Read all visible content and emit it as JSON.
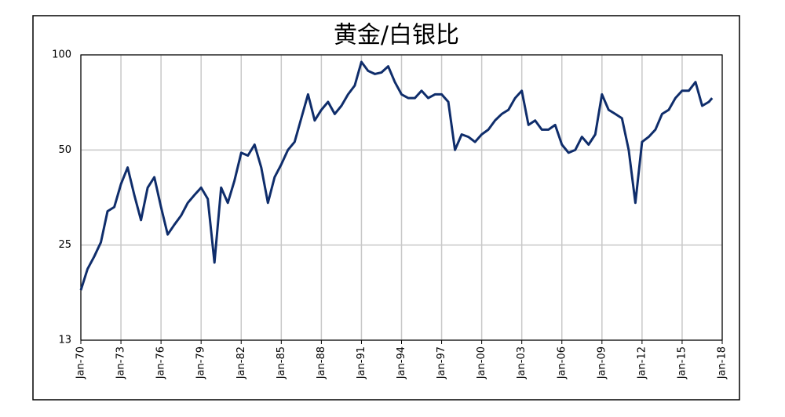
{
  "chart_data": {
    "type": "line",
    "title": "黄金/白银比",
    "x": [
      "Jan-70",
      "Jul-70",
      "Jan-71",
      "Jul-71",
      "Jan-72",
      "Jul-72",
      "Jan-73",
      "Jul-73",
      "Jan-74",
      "Jul-74",
      "Jan-75",
      "Jul-75",
      "Jan-76",
      "Jul-76",
      "Jan-77",
      "Jul-77",
      "Jan-78",
      "Jul-78",
      "Jan-79",
      "Jul-79",
      "Jan-80",
      "Jul-80",
      "Jan-81",
      "Jul-81",
      "Jan-82",
      "Jul-82",
      "Jan-83",
      "Jul-83",
      "Jan-84",
      "Jul-84",
      "Jan-85",
      "Jul-85",
      "Jan-86",
      "Jul-86",
      "Jan-87",
      "Jul-87",
      "Jan-88",
      "Jul-88",
      "Jan-89",
      "Jul-89",
      "Jan-90",
      "Jul-90",
      "Jan-91",
      "Jul-91",
      "Jan-92",
      "Jul-92",
      "Jan-93",
      "Jul-93",
      "Jan-94",
      "Jul-94",
      "Jan-95",
      "Jul-95",
      "Jan-96",
      "Jul-96",
      "Jan-97",
      "Jul-97",
      "Jan-98",
      "Jul-98",
      "Jan-99",
      "Jul-99",
      "Jan-00",
      "Jul-00",
      "Jan-01",
      "Jul-01",
      "Jan-02",
      "Jul-02",
      "Jan-03",
      "Jul-03",
      "Jan-04",
      "Jul-04",
      "Jan-05",
      "Jul-05",
      "Jan-06",
      "Jul-06",
      "Jan-07",
      "Jul-07",
      "Jan-08",
      "Jul-08",
      "Jan-09",
      "Jul-09",
      "Jan-10",
      "Jul-10",
      "Jan-11",
      "Jul-11",
      "Jan-12",
      "Jul-12",
      "Jan-13",
      "Jul-13",
      "Jan-14",
      "Jul-14",
      "Jan-15",
      "Jul-15",
      "Jan-16",
      "Jul-16",
      "Jan-17",
      "Apr-17"
    ],
    "series": [
      {
        "color": "#0f2d6b",
        "values": [
          18,
          21,
          23,
          25.5,
          32,
          33,
          39,
          44,
          36,
          30,
          38,
          41,
          33,
          27,
          29,
          31,
          34,
          36,
          38,
          35,
          22,
          38,
          34,
          40,
          49,
          48,
          52,
          44,
          34,
          41,
          45,
          50,
          53,
          63,
          75,
          62,
          67,
          71,
          65,
          69,
          75,
          80,
          95,
          89,
          87,
          88,
          92,
          82,
          75,
          73,
          73,
          77,
          73,
          75,
          75,
          71,
          50,
          56,
          55,
          53,
          56,
          58,
          62,
          65,
          67,
          73,
          77,
          60,
          62,
          58,
          58,
          60,
          52,
          49,
          50,
          55,
          52,
          56,
          75,
          67,
          65,
          63,
          50,
          34,
          53,
          55,
          58,
          65,
          67,
          73,
          77,
          77,
          82,
          69,
          71,
          73
        ]
      }
    ],
    "xlim": [
      "Jan-70",
      "Jan-18"
    ],
    "xticks": [
      "Jan-70",
      "Jan-73",
      "Jan-76",
      "Jan-79",
      "Jan-82",
      "Jan-85",
      "Jan-88",
      "Jan-91",
      "Jan-94",
      "Jan-97",
      "Jan-00",
      "Jan-03",
      "Jan-06",
      "Jan-09",
      "Jan-12",
      "Jan-15",
      "Jan-18"
    ],
    "ylim": [
      12.5,
      100
    ],
    "log_scale": true,
    "yticks": [
      {
        "value": 12.5,
        "label": "13"
      },
      25,
      50,
      100
    ],
    "grid": true
  }
}
